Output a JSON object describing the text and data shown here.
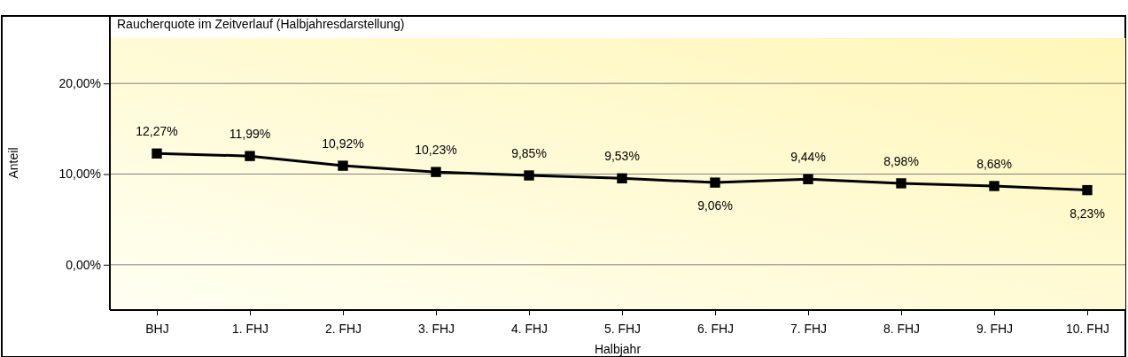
{
  "chart_data": {
    "type": "line",
    "title": "Raucherquote im Zeitverlauf (Halbjahresdarstellung)",
    "xlabel": "Halbjahr",
    "ylabel": "Anteil",
    "categories": [
      "BHJ",
      "1. FHJ",
      "2. FHJ",
      "3. FHJ",
      "4. FHJ",
      "5. FHJ",
      "6. FHJ",
      "7. FHJ",
      "8. FHJ",
      "9. FHJ",
      "10. FHJ"
    ],
    "series": [
      {
        "color": "#000000",
        "values": [
          12.27,
          11.99,
          10.92,
          10.23,
          9.85,
          9.53,
          9.06,
          9.44,
          8.98,
          8.68,
          8.23
        ],
        "value_labels": [
          "12,27%",
          "11,99%",
          "10,92%",
          "10,23%",
          "9,85%",
          "9,53%",
          "9,06%",
          "9,44%",
          "8,98%",
          "8,68%",
          "8,23%"
        ]
      }
    ],
    "ylim": [
      -5,
      25
    ],
    "yticks": [
      {
        "value": 0,
        "label": "0,00%"
      },
      {
        "value": 10,
        "label": "10,00%"
      },
      {
        "value": 20,
        "label": "20,00%"
      }
    ],
    "grid": "y",
    "marker": "square",
    "line_style": "solid"
  }
}
